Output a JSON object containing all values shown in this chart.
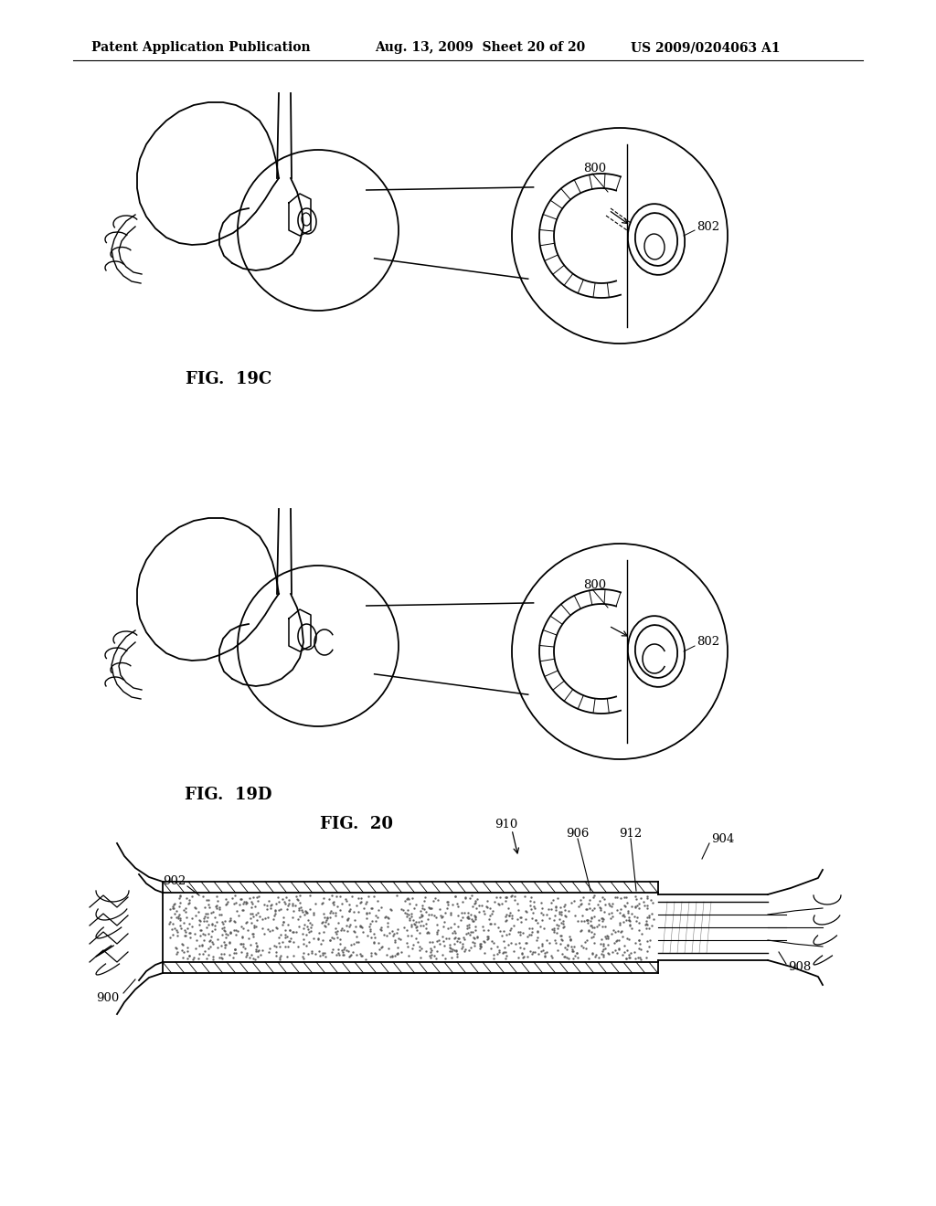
{
  "bg_color": "#ffffff",
  "header_left": "Patent Application Publication",
  "header_mid": "Aug. 13, 2009  Sheet 20 of 20",
  "header_right": "US 2009/0204063 A1",
  "fig19c_label": "FIG.  19C",
  "fig19d_label": "FIG.  19D",
  "fig20_label": "FIG.  20",
  "lc": "#000000",
  "lw": 1.3
}
